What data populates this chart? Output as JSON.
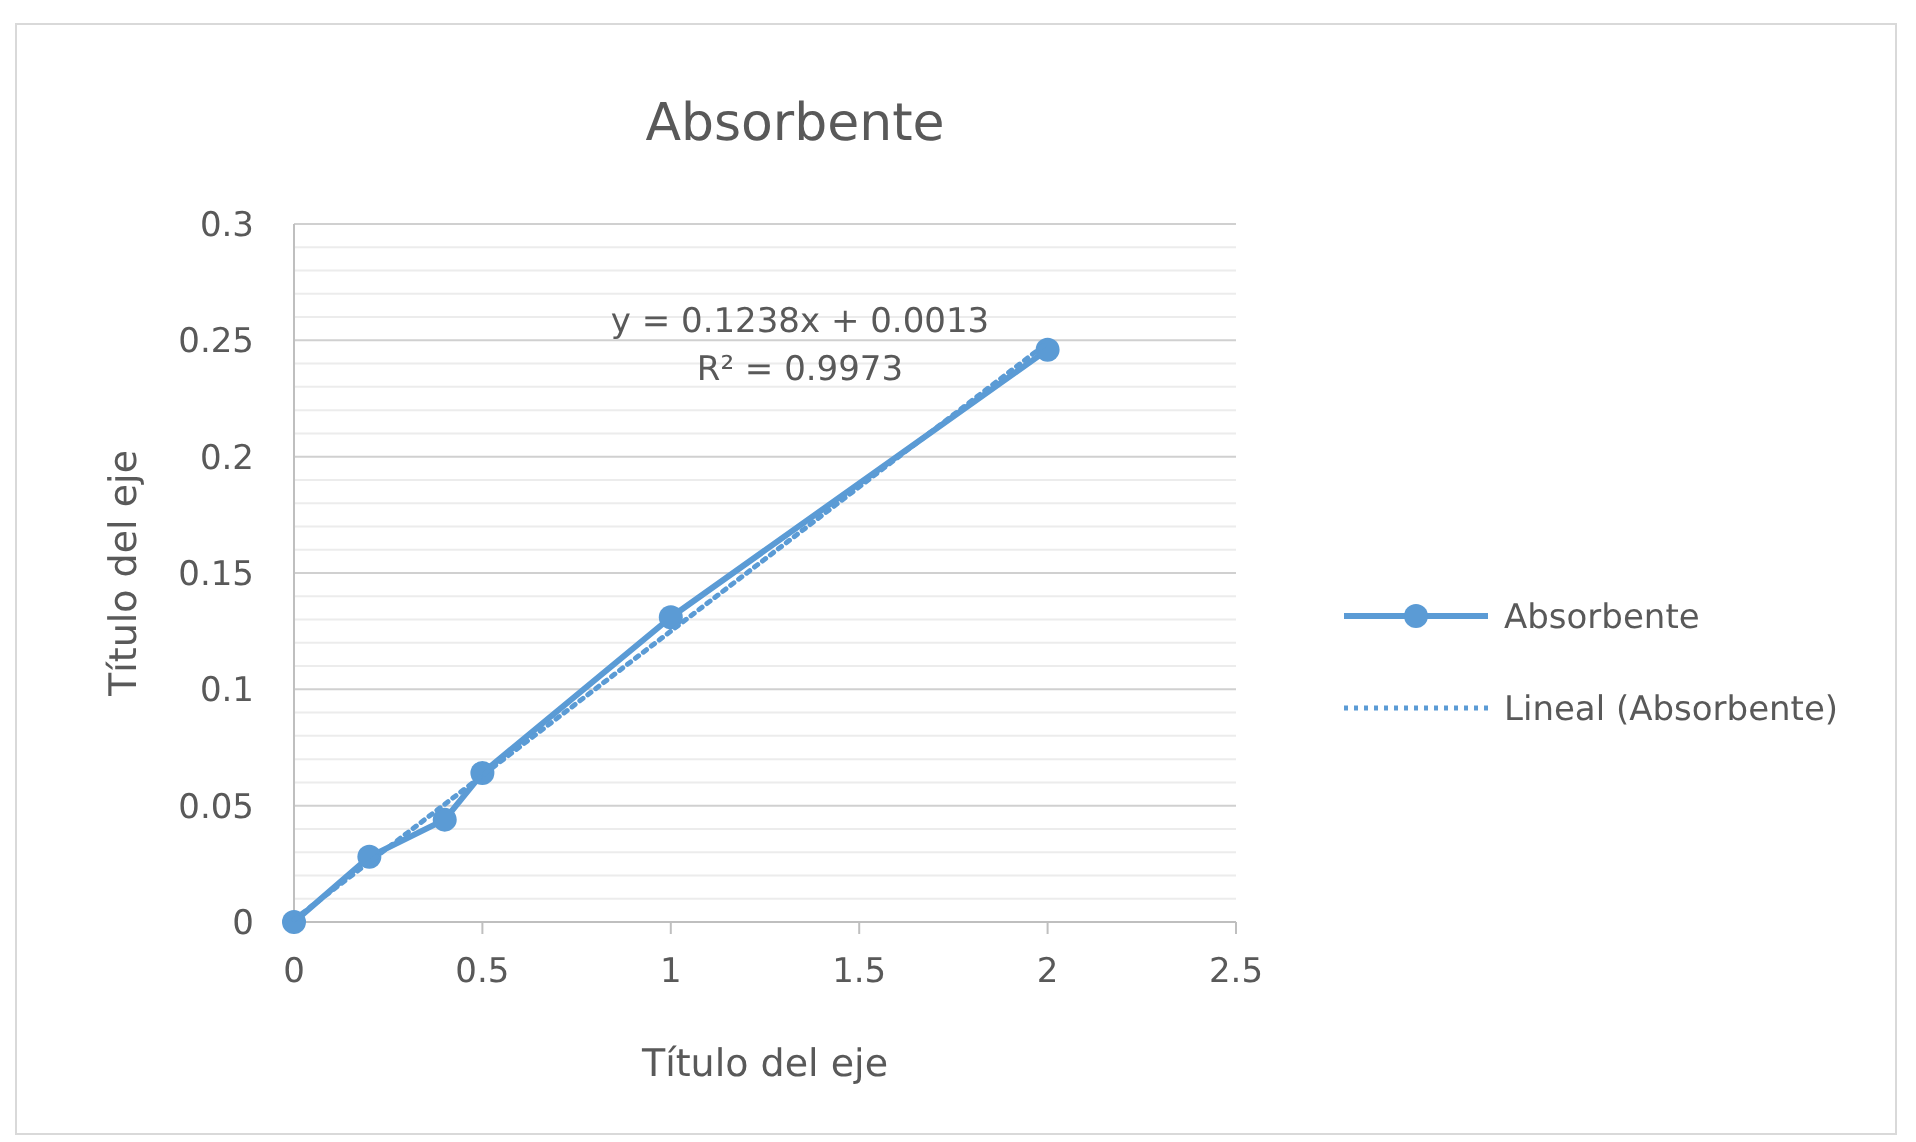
{
  "chart_data": {
    "type": "line",
    "title": "Absorbente",
    "xlabel": "Título del eje",
    "ylabel": "Título del eje",
    "xlim": [
      0,
      2.5
    ],
    "xticks": [
      0,
      0.5,
      1,
      1.5,
      2,
      2.5
    ],
    "ylim": [
      0,
      0.3
    ],
    "yticks": [
      0,
      {
        "value": 0.01,
        "label": null
      },
      {
        "value": 0.02,
        "label": null
      },
      {
        "value": 0.03,
        "label": null
      },
      {
        "value": 0.04,
        "label": null
      },
      0.05,
      {
        "value": 0.06,
        "label": null
      },
      {
        "value": 0.07,
        "label": null
      },
      {
        "value": 0.08,
        "label": null
      },
      {
        "value": 0.09,
        "label": null
      },
      0.1,
      {
        "value": 0.11,
        "label": null
      },
      {
        "value": 0.12,
        "label": null
      },
      {
        "value": 0.13,
        "label": null
      },
      {
        "value": 0.14,
        "label": null
      },
      0.15,
      {
        "value": 0.16,
        "label": null
      },
      {
        "value": 0.17,
        "label": null
      },
      {
        "value": 0.18,
        "label": null
      },
      {
        "value": 0.19,
        "label": null
      },
      0.2,
      {
        "value": 0.21,
        "label": null
      },
      {
        "value": 0.22,
        "label": null
      },
      {
        "value": 0.23,
        "label": null
      },
      {
        "value": 0.24,
        "label": null
      },
      0.25,
      {
        "value": 0.26,
        "label": null
      },
      {
        "value": 0.27,
        "label": null
      },
      {
        "value": 0.28,
        "label": null
      },
      {
        "value": 0.29,
        "label": null
      },
      0.3
    ],
    "grid": "y",
    "legend": "right",
    "series": [
      {
        "name": "Absorbente",
        "color": "#5b9bd5",
        "x": [
          0,
          0.2,
          0.4,
          0.5,
          1,
          2
        ],
        "values": [
          0,
          0.028,
          0.044,
          0.064,
          0.131,
          0.246
        ],
        "marker": "circle",
        "line_style": "solid"
      },
      {
        "name": "Lineal (Absorbente)",
        "color": "#5b9bd5",
        "x": [
          0,
          2
        ],
        "values": [
          0.001,
          0.249
        ],
        "marker": "none",
        "line_style": "dotted"
      }
    ],
    "annotations": [
      "y = 0.1238x + 0.0013",
      "R² = 0.9973"
    ]
  }
}
